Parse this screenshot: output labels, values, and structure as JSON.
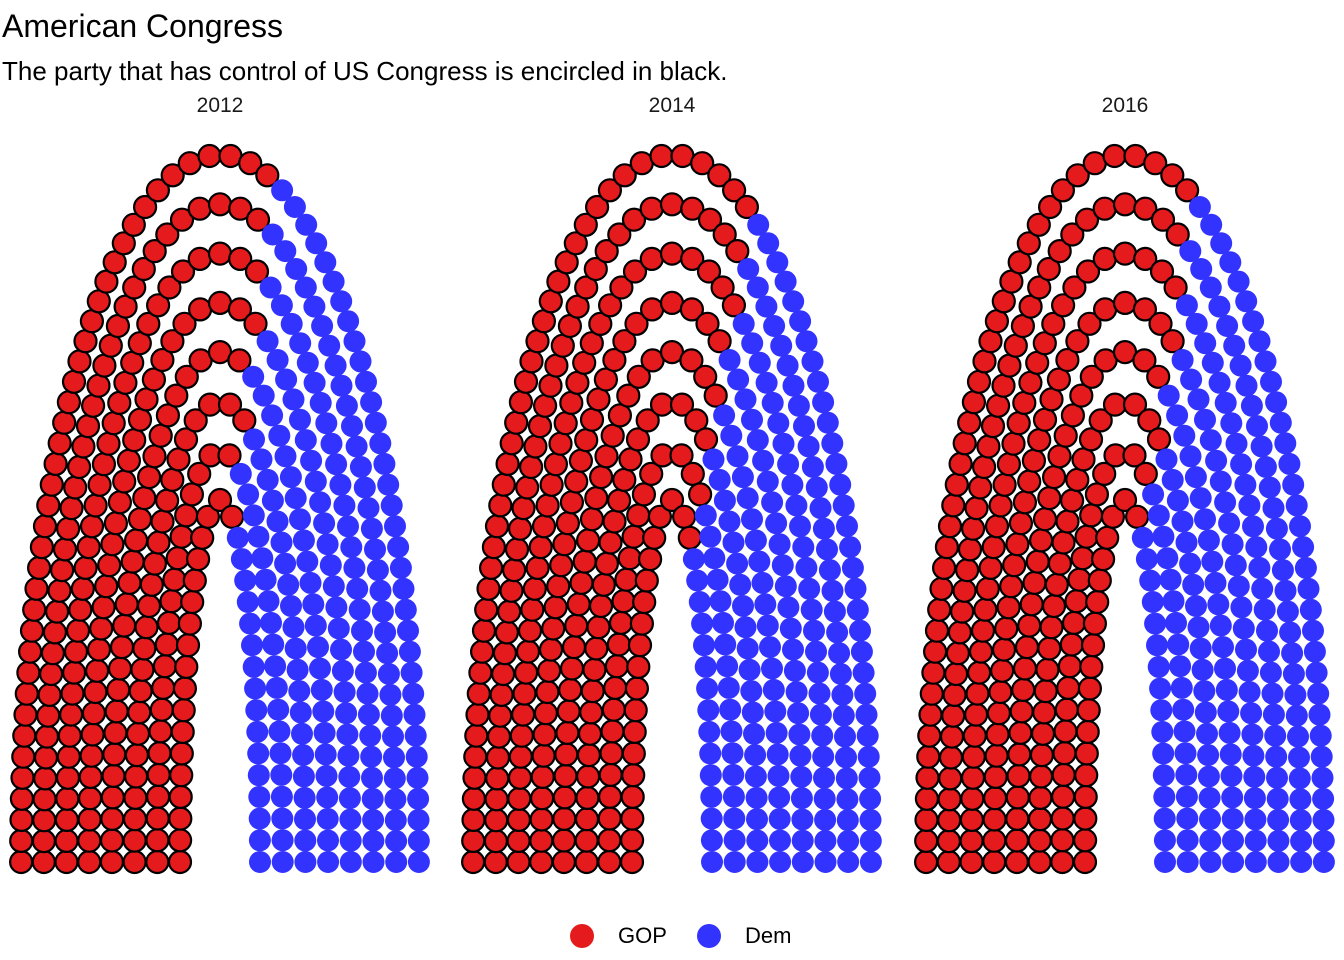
{
  "title": "American Congress",
  "subtitle": "The party that has control of US Congress is encircled in black.",
  "legend": {
    "items": [
      {
        "label": "GOP",
        "color": "#E41A1C"
      },
      {
        "label": "Dem",
        "color": "#3333FF"
      }
    ]
  },
  "chart_data": {
    "type": "scatter",
    "chart_kind": "parliament-arch",
    "title": "American Congress",
    "subtitle": "The party that has control of US Congress is encircled in black.",
    "controlling_party": "GOP",
    "legend_position": "bottom",
    "grid": false,
    "panels": [
      {
        "year": "2012",
        "seats": {
          "GOP": 234,
          "Dem": 201
        },
        "control": "GOP"
      },
      {
        "year": "2014",
        "seats": {
          "GOP": 247,
          "Dem": 188
        },
        "control": "GOP"
      },
      {
        "year": "2016",
        "seats": {
          "GOP": 241,
          "Dem": 194
        },
        "control": "GOP"
      }
    ],
    "series": [
      {
        "name": "GOP",
        "color": "#E41A1C",
        "values": [
          234,
          247,
          241
        ]
      },
      {
        "name": "Dem",
        "color": "#3333FF",
        "values": [
          201,
          188,
          194
        ]
      }
    ]
  }
}
